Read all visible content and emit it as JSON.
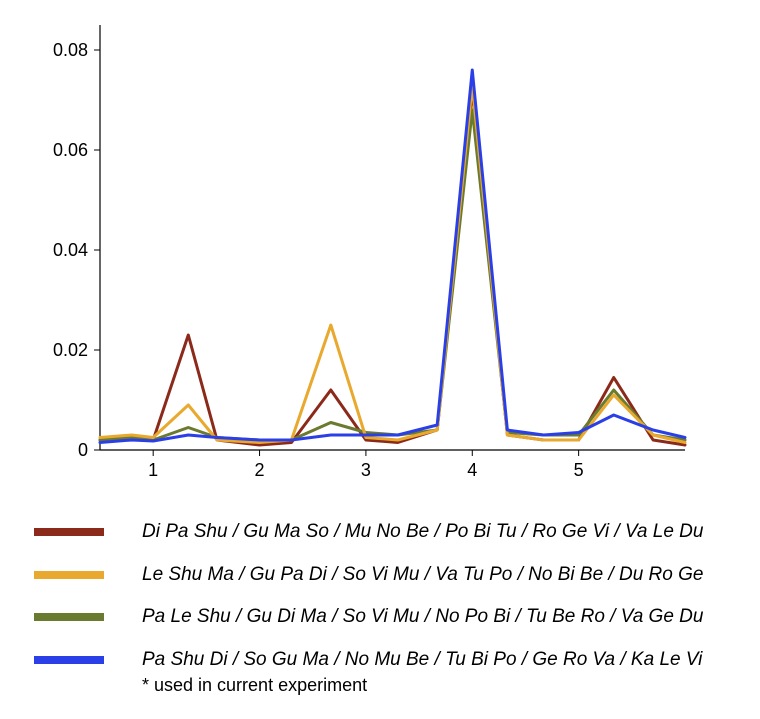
{
  "chart": {
    "type": "line",
    "background_color": "#ffffff",
    "axis_color": "#000000",
    "line_width": 3,
    "tick_fontsize": 18,
    "xlim": [
      0.5,
      6.0
    ],
    "ylim": [
      0,
      0.085
    ],
    "xticks": [
      1,
      2,
      3,
      4,
      5
    ],
    "xtick_labels": [
      "1",
      "2",
      "3",
      "4",
      "5"
    ],
    "yticks": [
      0,
      0.02,
      0.04,
      0.06,
      0.08
    ],
    "ytick_labels": [
      "0",
      "0.02",
      "0.04",
      "0.06",
      "0.08"
    ],
    "x": [
      0.5,
      0.8,
      1.0,
      1.33,
      1.6,
      2.0,
      2.3,
      2.67,
      3.0,
      3.3,
      3.67,
      4.0,
      4.33,
      4.67,
      5.0,
      5.33,
      5.7,
      6.0
    ],
    "series": [
      {
        "name": "series-red",
        "color": "#8b2a1a",
        "y": [
          0.002,
          0.0025,
          0.002,
          0.023,
          0.002,
          0.001,
          0.0015,
          0.012,
          0.002,
          0.0015,
          0.004,
          0.072,
          0.003,
          0.002,
          0.002,
          0.0145,
          0.002,
          0.001
        ]
      },
      {
        "name": "series-yellow",
        "color": "#e8a92e",
        "y": [
          0.0025,
          0.003,
          0.0025,
          0.009,
          0.002,
          0.0015,
          0.002,
          0.025,
          0.0025,
          0.002,
          0.004,
          0.073,
          0.003,
          0.002,
          0.002,
          0.011,
          0.003,
          0.0015
        ]
      },
      {
        "name": "series-green",
        "color": "#6a7a2e",
        "y": [
          0.002,
          0.0025,
          0.002,
          0.0045,
          0.0025,
          0.002,
          0.002,
          0.0055,
          0.0035,
          0.003,
          0.004,
          0.068,
          0.0035,
          0.003,
          0.003,
          0.012,
          0.003,
          0.002
        ]
      },
      {
        "name": "series-blue",
        "color": "#2a3fe8",
        "y": [
          0.0015,
          0.002,
          0.0018,
          0.003,
          0.0025,
          0.002,
          0.002,
          0.003,
          0.003,
          0.003,
          0.005,
          0.076,
          0.004,
          0.003,
          0.0035,
          0.007,
          0.004,
          0.0025
        ]
      }
    ]
  },
  "legend": {
    "items": [
      {
        "color": "#8b2a1a",
        "label": "Di Pa Shu / Gu Ma So / Mu No Be / Po Bi Tu / Ro Ge Vi / Va Le Du",
        "note": ""
      },
      {
        "color": "#e8a92e",
        "label": "Le Shu Ma / Gu Pa Di / So Vi Mu / Va Tu Po / No Bi Be / Du Ro Ge",
        "note": ""
      },
      {
        "color": "#6a7a2e",
        "label": "Pa Le Shu / Gu Di Ma / So Vi Mu / No Po Bi / Tu Be Ro / Va Ge Du",
        "note": ""
      },
      {
        "color": "#2a3fe8",
        "label": "Pa Shu Di / So Gu Ma / No Mu Be / Tu Bi Po / Ge Ro Va / Ka Le Vi",
        "note": "* used in current experiment"
      }
    ]
  }
}
